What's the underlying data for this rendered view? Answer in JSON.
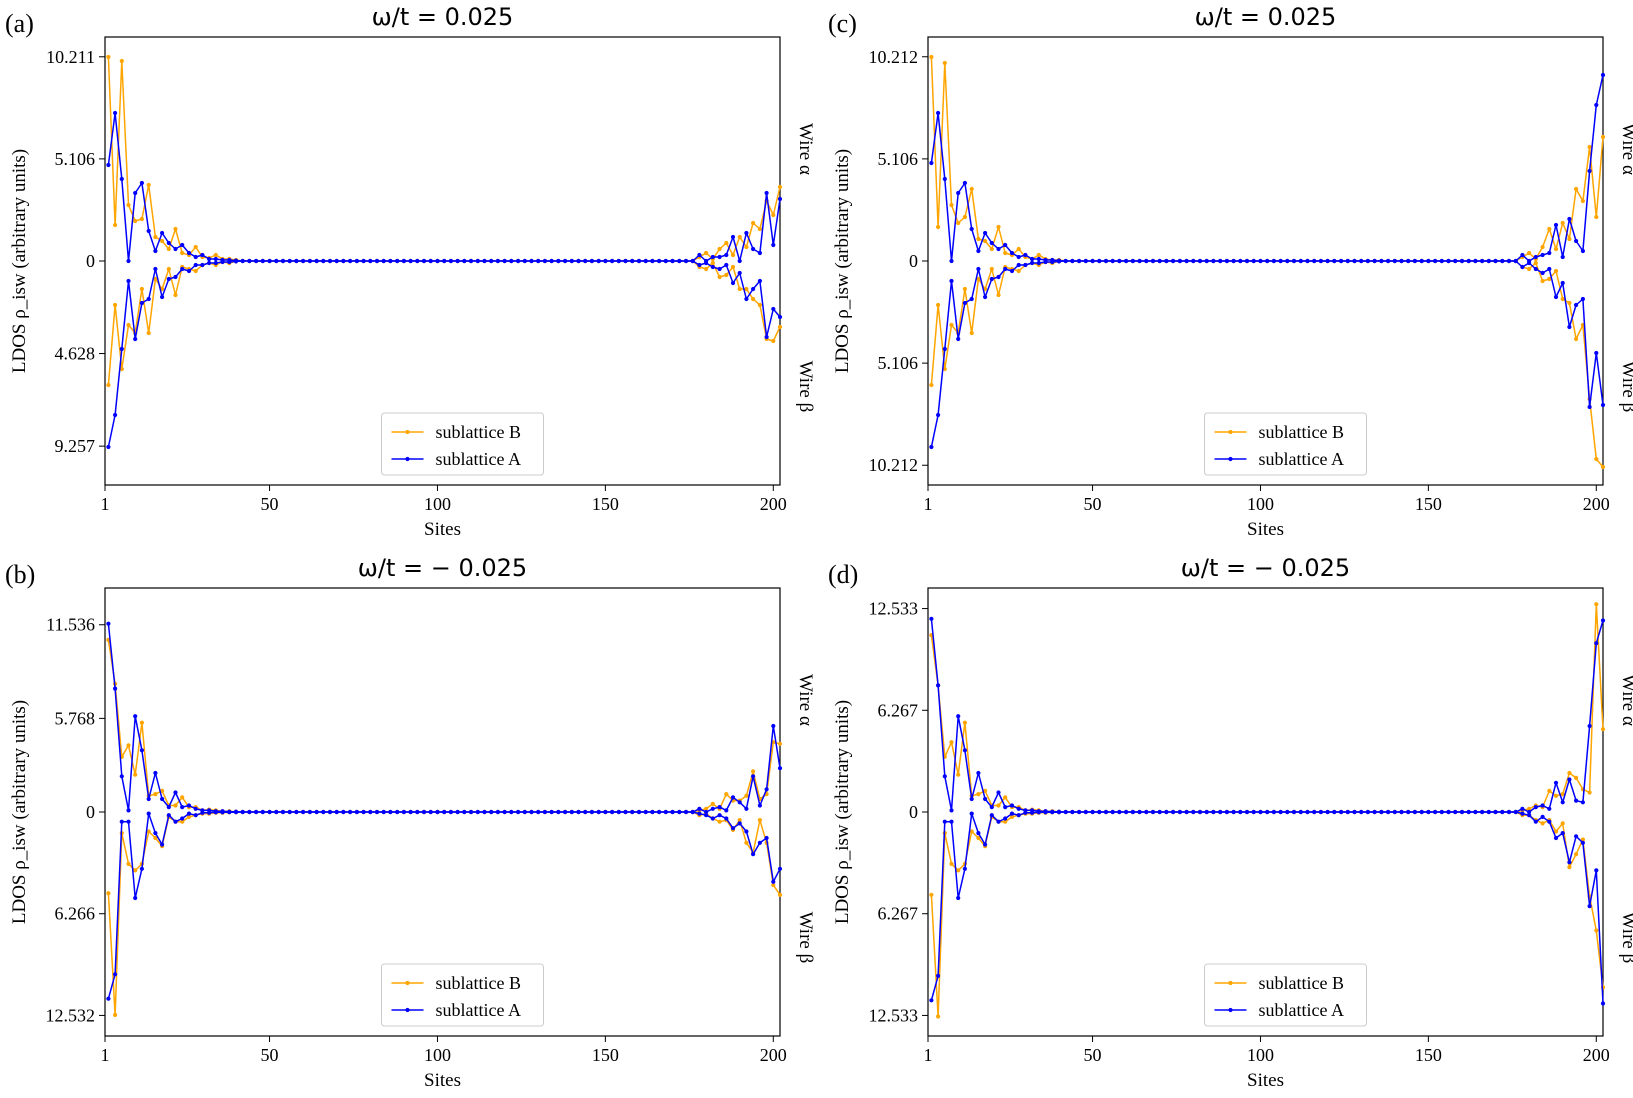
{
  "colors": {
    "sublattice_B": "#FFA500",
    "sublattice_A": "#0000FF"
  },
  "chart_data": [
    {
      "panel": "(a)",
      "type": "line",
      "title": "ω/t = 0.025",
      "xlabel": "Sites",
      "ylabel": "LDOS  ρ_isw (arbitrary units)",
      "wire_top": "Wire α",
      "wire_bottom": "Wire β",
      "xlim": [
        1,
        202
      ],
      "ylim": [
        -11.2,
        11.2
      ],
      "xticks": [
        1,
        50,
        100,
        150,
        200
      ],
      "xtick_labels": [
        "1",
        "50",
        "100",
        "150",
        "200"
      ],
      "yticks": [
        10.211,
        5.106,
        0,
        -4.628,
        -9.257
      ],
      "ytick_labels": [
        "10.211",
        "5.106",
        "0",
        "4.628",
        "9.257"
      ],
      "legend": [
        "sublattice B",
        "sublattice A"
      ],
      "legend_loc": "lower center",
      "series": [
        {
          "name": "sublattice B",
          "color_key": "sublattice_B",
          "upper": {
            "start": [
              10.2,
              1.8,
              10.0,
              2.8,
              2.0,
              2.1,
              3.8,
              1.2,
              1.0,
              0.6,
              1.6,
              0.4,
              0.3,
              0.7,
              0.2,
              0.15,
              0.3,
              0.1,
              0.1,
              0.05
            ],
            "end": [
              0.2,
              0.4,
              0.1,
              0.6,
              0.9,
              0.3,
              1.2,
              0.7,
              1.9,
              1.6,
              3.0,
              2.3,
              3.7
            ]
          },
          "lower": {
            "start": [
              -6.2,
              -2.2,
              -5.4,
              -3.2,
              -3.6,
              -1.4,
              -3.6,
              -0.9,
              -1.4,
              -0.4,
              -1.7,
              -0.3,
              -0.4,
              -0.5,
              -0.2,
              -0.1,
              -0.2,
              -0.05,
              -0.1,
              -0.02
            ],
            "end": [
              -0.3,
              -0.4,
              -0.1,
              -0.8,
              -0.7,
              -0.3,
              -1.4,
              -1.4,
              -1.9,
              -2.2,
              -3.9,
              -4.0,
              -3.3
            ]
          }
        },
        {
          "name": "sublattice A",
          "color_key": "sublattice_A",
          "upper": {
            "start": [
              4.8,
              7.4,
              4.1,
              0.0,
              3.4,
              3.9,
              1.5,
              0.5,
              1.4,
              0.9,
              0.6,
              0.8,
              0.4,
              0.2,
              0.3,
              0.1,
              0.1,
              0.05,
              0.05,
              0.02
            ],
            "end": [
              0.3,
              0.0,
              0.2,
              0.2,
              0.3,
              1.2,
              0.0,
              1.4,
              0.6,
              0.4,
              3.4,
              0.8,
              3.1
            ]
          },
          "lower": {
            "start": [
              -9.3,
              -7.7,
              -4.4,
              -1.0,
              -3.9,
              -2.1,
              -1.9,
              -0.4,
              -1.8,
              -0.9,
              -0.8,
              -0.4,
              -0.5,
              -0.2,
              -0.2,
              -0.1,
              -0.1,
              -0.05,
              -0.05,
              -0.02
            ],
            "end": [
              -0.2,
              -0.1,
              -0.3,
              -0.4,
              -0.2,
              -1.1,
              -0.6,
              -1.9,
              -1.4,
              -1.0,
              -3.8,
              -2.4,
              -2.8
            ]
          }
        }
      ]
    },
    {
      "panel": "(b)",
      "type": "line",
      "title": "ω/t = − 0.025",
      "xlabel": "Sites",
      "ylabel": "LDOS  ρ_isw (arbitrary units)",
      "wire_top": "Wire α",
      "wire_bottom": "Wire β",
      "xlim": [
        1,
        202
      ],
      "ylim": [
        -13.8,
        13.8
      ],
      "xticks": [
        1,
        50,
        100,
        150,
        200
      ],
      "xtick_labels": [
        "1",
        "50",
        "100",
        "150",
        "200"
      ],
      "yticks": [
        11.536,
        5.768,
        0,
        -6.266,
        -12.532
      ],
      "ytick_labels": [
        "11.536",
        "5.768",
        "0",
        "6.266",
        "12.532"
      ],
      "legend": [
        "sublattice B",
        "sublattice A"
      ],
      "legend_loc": "lower center",
      "series": [
        {
          "name": "sublattice B",
          "color_key": "sublattice_B",
          "upper": {
            "start": [
              10.6,
              7.9,
              3.4,
              4.1,
              2.3,
              5.5,
              1.0,
              1.1,
              1.3,
              0.4,
              0.4,
              0.9,
              0.3,
              0.3,
              0.1,
              0.15,
              0.1,
              0.05,
              0.05,
              0.02
            ],
            "end": [
              0.1,
              0.2,
              0.5,
              0.2,
              1.1,
              0.7,
              0.7,
              1.0,
              2.5,
              0.8,
              1.1,
              4.3,
              4.2
            ]
          },
          "lower": {
            "start": [
              -5.0,
              -12.5,
              -1.3,
              -3.2,
              -3.6,
              -3.2,
              -1.2,
              -1.6,
              -2.1,
              -0.3,
              -0.6,
              -0.6,
              -0.3,
              -0.2,
              -0.1,
              -0.1,
              -0.05,
              -0.05,
              -0.02,
              -0.02
            ],
            "end": [
              -0.2,
              -0.1,
              -0.4,
              -0.6,
              -0.5,
              -1.1,
              -0.5,
              -1.9,
              -2.5,
              -0.5,
              -1.9,
              -4.5,
              -5.1
            ]
          }
        },
        {
          "name": "sublattice A",
          "color_key": "sublattice_A",
          "upper": {
            "start": [
              11.6,
              7.6,
              2.2,
              0.1,
              5.9,
              3.8,
              0.8,
              2.4,
              0.8,
              0.3,
              1.2,
              0.3,
              0.4,
              0.2,
              0.1,
              0.1,
              0.05,
              0.05,
              0.02,
              0.02
            ],
            "end": [
              0.2,
              0.0,
              0.2,
              0.3,
              0.1,
              0.9,
              0.6,
              0.2,
              2.2,
              0.4,
              1.4,
              5.3,
              2.7
            ]
          },
          "lower": {
            "start": [
              -11.5,
              -10.0,
              -0.6,
              -0.6,
              -5.3,
              -3.5,
              -0.1,
              -1.3,
              -2.0,
              -0.2,
              -0.6,
              -0.4,
              -0.1,
              -0.2,
              -0.05,
              -0.05,
              -0.02,
              -0.02,
              -0.01,
              -0.01
            ],
            "end": [
              -0.1,
              -0.2,
              -0.4,
              -0.2,
              -0.4,
              -1.0,
              -0.7,
              -1.2,
              -2.6,
              -1.9,
              -1.6,
              -4.3,
              -3.5
            ]
          }
        }
      ]
    },
    {
      "panel": "(c)",
      "type": "line",
      "title": "ω/t = 0.025",
      "xlabel": "Sites",
      "ylabel": "LDOS  ρ_isw (arbitrary units)",
      "wire_top": "Wire α",
      "wire_bottom": "Wire β",
      "xlim": [
        1,
        202
      ],
      "ylim": [
        -11.2,
        11.2
      ],
      "xticks": [
        1,
        50,
        100,
        150,
        200
      ],
      "xtick_labels": [
        "1",
        "50",
        "100",
        "150",
        "200"
      ],
      "yticks": [
        10.212,
        5.106,
        0,
        -5.106,
        -10.212
      ],
      "ytick_labels": [
        "10.212",
        "5.106",
        "0",
        "5.106",
        "10.212"
      ],
      "legend": [
        "sublattice B",
        "sublattice A"
      ],
      "legend_loc": "lower center",
      "series": [
        {
          "name": "sublattice B",
          "color_key": "sublattice_B",
          "upper": {
            "start": [
              10.2,
              1.7,
              9.9,
              2.8,
              1.9,
              2.2,
              3.6,
              1.1,
              1.0,
              0.6,
              1.7,
              0.4,
              0.3,
              0.6,
              0.2,
              0.1,
              0.3,
              0.1,
              0.05,
              0.05
            ],
            "end": [
              0.2,
              0.4,
              0.1,
              0.7,
              1.6,
              0.6,
              1.9,
              1.1,
              3.6,
              3.0,
              5.7,
              2.2,
              6.2
            ]
          },
          "lower": {
            "start": [
              -6.2,
              -2.2,
              -5.4,
              -3.2,
              -3.6,
              -1.4,
              -3.6,
              -0.9,
              -1.4,
              -0.4,
              -1.7,
              -0.3,
              -0.4,
              -0.5,
              -0.2,
              -0.1,
              -0.2,
              -0.05,
              -0.1,
              -0.02
            ],
            "end": [
              -0.3,
              -0.4,
              -0.1,
              -1.0,
              -0.9,
              -0.5,
              -1.9,
              -2.1,
              -3.9,
              -3.2,
              -6.9,
              -9.9,
              -10.3
            ]
          }
        },
        {
          "name": "sublattice A",
          "color_key": "sublattice_A",
          "upper": {
            "start": [
              4.9,
              7.4,
              4.1,
              0.0,
              3.4,
              3.9,
              1.6,
              0.5,
              1.4,
              0.9,
              0.6,
              0.8,
              0.4,
              0.2,
              0.3,
              0.1,
              0.1,
              0.05,
              0.05,
              0.02
            ],
            "end": [
              0.3,
              0.0,
              0.2,
              0.3,
              0.4,
              1.8,
              0.2,
              2.1,
              1.0,
              0.5,
              4.5,
              7.8,
              9.3
            ]
          },
          "lower": {
            "start": [
              -9.3,
              -7.7,
              -4.4,
              -1.0,
              -3.9,
              -2.1,
              -1.9,
              -0.4,
              -1.8,
              -0.9,
              -0.8,
              -0.4,
              -0.5,
              -0.2,
              -0.2,
              -0.1,
              -0.1,
              -0.05,
              -0.05,
              -0.02
            ],
            "end": [
              -0.3,
              -0.1,
              -0.4,
              -0.6,
              -0.4,
              -1.8,
              -1.1,
              -3.3,
              -2.2,
              -1.9,
              -7.3,
              -4.6,
              -7.2
            ]
          }
        }
      ]
    },
    {
      "panel": "(d)",
      "type": "line",
      "title": "ω/t = − 0.025",
      "xlabel": "Sites",
      "ylabel": "LDOS  ρ_isw (arbitrary units)",
      "wire_top": "Wire α",
      "wire_bottom": "Wire β",
      "xlim": [
        1,
        202
      ],
      "ylim": [
        -13.8,
        13.8
      ],
      "xticks": [
        1,
        50,
        100,
        150,
        200
      ],
      "xtick_labels": [
        "1",
        "50",
        "100",
        "150",
        "200"
      ],
      "yticks": [
        12.533,
        6.267,
        0,
        -6.267,
        -12.533
      ],
      "ytick_labels": [
        "12.533",
        "6.267",
        "0",
        "6.267",
        "12.533"
      ],
      "legend": [
        "sublattice B",
        "sublattice A"
      ],
      "legend_loc": "lower center",
      "series": [
        {
          "name": "sublattice B",
          "color_key": "sublattice_B",
          "upper": {
            "start": [
              10.9,
              7.8,
              3.4,
              4.3,
              2.3,
              5.5,
              1.0,
              1.1,
              1.3,
              0.4,
              0.4,
              0.9,
              0.3,
              0.3,
              0.1,
              0.15,
              0.1,
              0.05,
              0.05,
              0.02
            ],
            "end": [
              0.1,
              0.2,
              0.4,
              0.3,
              1.3,
              1.0,
              1.1,
              2.4,
              2.1,
              1.4,
              1.2,
              12.8,
              5.1
            ]
          },
          "lower": {
            "start": [
              -5.1,
              -12.6,
              -1.3,
              -3.2,
              -3.6,
              -3.2,
              -1.2,
              -1.6,
              -2.1,
              -0.3,
              -0.6,
              -0.6,
              -0.3,
              -0.2,
              -0.1,
              -0.1,
              -0.05,
              -0.05,
              -0.02,
              -0.02
            ],
            "end": [
              -0.2,
              -0.2,
              -0.5,
              -0.7,
              -0.5,
              -1.2,
              -0.7,
              -3.4,
              -2.6,
              -1.7,
              -5.2,
              -7.3,
              -10.8
            ]
          }
        },
        {
          "name": "sublattice A",
          "color_key": "sublattice_A",
          "upper": {
            "start": [
              11.9,
              7.8,
              2.2,
              0.1,
              5.9,
              3.8,
              0.8,
              2.4,
              0.8,
              0.3,
              1.2,
              0.3,
              0.4,
              0.2,
              0.1,
              0.1,
              0.05,
              0.05,
              0.02,
              0.02
            ],
            "end": [
              0.2,
              0.0,
              0.3,
              0.4,
              0.2,
              1.8,
              0.6,
              2.0,
              0.7,
              0.6,
              5.3,
              10.4,
              11.8
            ]
          },
          "lower": {
            "start": [
              -11.6,
              -10.1,
              -0.6,
              -0.6,
              -5.3,
              -3.5,
              -0.1,
              -1.3,
              -2.0,
              -0.2,
              -0.6,
              -0.4,
              -0.1,
              -0.2,
              -0.05,
              -0.05,
              -0.02,
              -0.02,
              -0.01,
              -0.01
            ],
            "end": [
              -0.1,
              -0.2,
              -0.6,
              -0.3,
              -0.6,
              -1.6,
              -1.3,
              -3.1,
              -1.5,
              -1.9,
              -5.8,
              -3.6,
              -11.8
            ]
          }
        }
      ]
    }
  ]
}
